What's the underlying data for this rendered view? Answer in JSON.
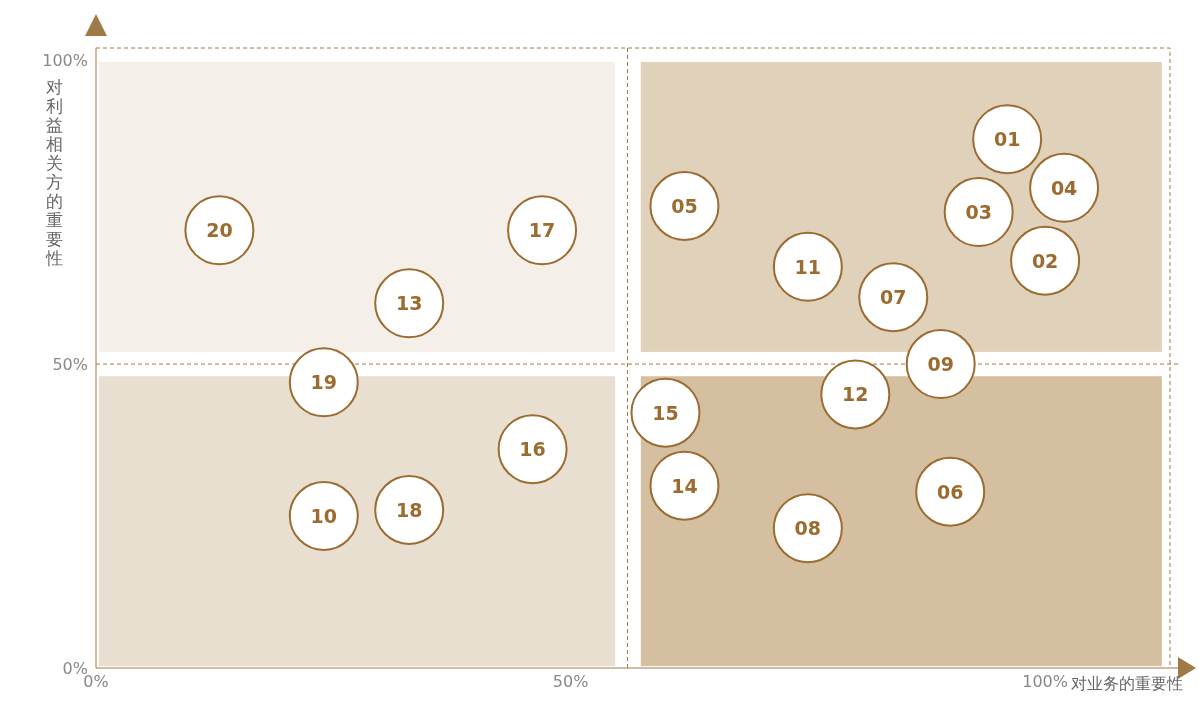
{
  "chart_data": {
    "type": "scatter",
    "xlabel": "对业务的重要性",
    "ylabel": "对利益相关方的重要性",
    "xlim": [
      0,
      114
    ],
    "ylim": [
      0,
      102
    ],
    "xticks": [
      {
        "value": 0,
        "label": "0%"
      },
      {
        "value": 50,
        "label": "50%"
      },
      {
        "value": 100,
        "label": "100%"
      }
    ],
    "yticks": [
      {
        "value": 0,
        "label": "0%"
      },
      {
        "value": 50,
        "label": "50%"
      },
      {
        "value": 100,
        "label": "100%"
      }
    ],
    "grid": false,
    "legend": false,
    "marker": "circle",
    "ref_lines": [
      {
        "axis": "x",
        "value": 56,
        "line_style": "dashed",
        "color": "#a07a45"
      },
      {
        "axis": "y",
        "value": 50,
        "line_style": "dashed",
        "color": "#a07a45"
      }
    ],
    "series": [
      {
        "color": "#9c6b30",
        "x": [
          96,
          100,
          93,
          102,
          62,
          90,
          84,
          75,
          89,
          24,
          75,
          80,
          33,
          62,
          60,
          46,
          47,
          33,
          24,
          13
        ],
        "values": [
          87,
          67,
          75,
          79,
          76,
          29,
          61,
          23,
          50,
          25,
          66,
          45,
          60,
          30,
          42,
          36,
          72,
          26,
          47,
          72
        ]
      }
    ],
    "annotations": [
      {
        "text": "01",
        "x": 96,
        "y": 87
      },
      {
        "text": "02",
        "x": 100,
        "y": 67
      },
      {
        "text": "03",
        "x": 93,
        "y": 75
      },
      {
        "text": "04",
        "x": 102,
        "y": 79
      },
      {
        "text": "05",
        "x": 62,
        "y": 76
      },
      {
        "text": "06",
        "x": 90,
        "y": 29
      },
      {
        "text": "07",
        "x": 84,
        "y": 61
      },
      {
        "text": "08",
        "x": 75,
        "y": 23
      },
      {
        "text": "09",
        "x": 89,
        "y": 50
      },
      {
        "text": "10",
        "x": 24,
        "y": 25
      },
      {
        "text": "11",
        "x": 75,
        "y": 66
      },
      {
        "text": "12",
        "x": 80,
        "y": 45
      },
      {
        "text": "13",
        "x": 33,
        "y": 60
      },
      {
        "text": "14",
        "x": 62,
        "y": 30
      },
      {
        "text": "15",
        "x": 60,
        "y": 42
      },
      {
        "text": "16",
        "x": 46,
        "y": 36
      },
      {
        "text": "17",
        "x": 47,
        "y": 72
      },
      {
        "text": "18",
        "x": 33,
        "y": 26
      },
      {
        "text": "19",
        "x": 24,
        "y": 47
      },
      {
        "text": "20",
        "x": 13,
        "y": 72
      }
    ]
  }
}
